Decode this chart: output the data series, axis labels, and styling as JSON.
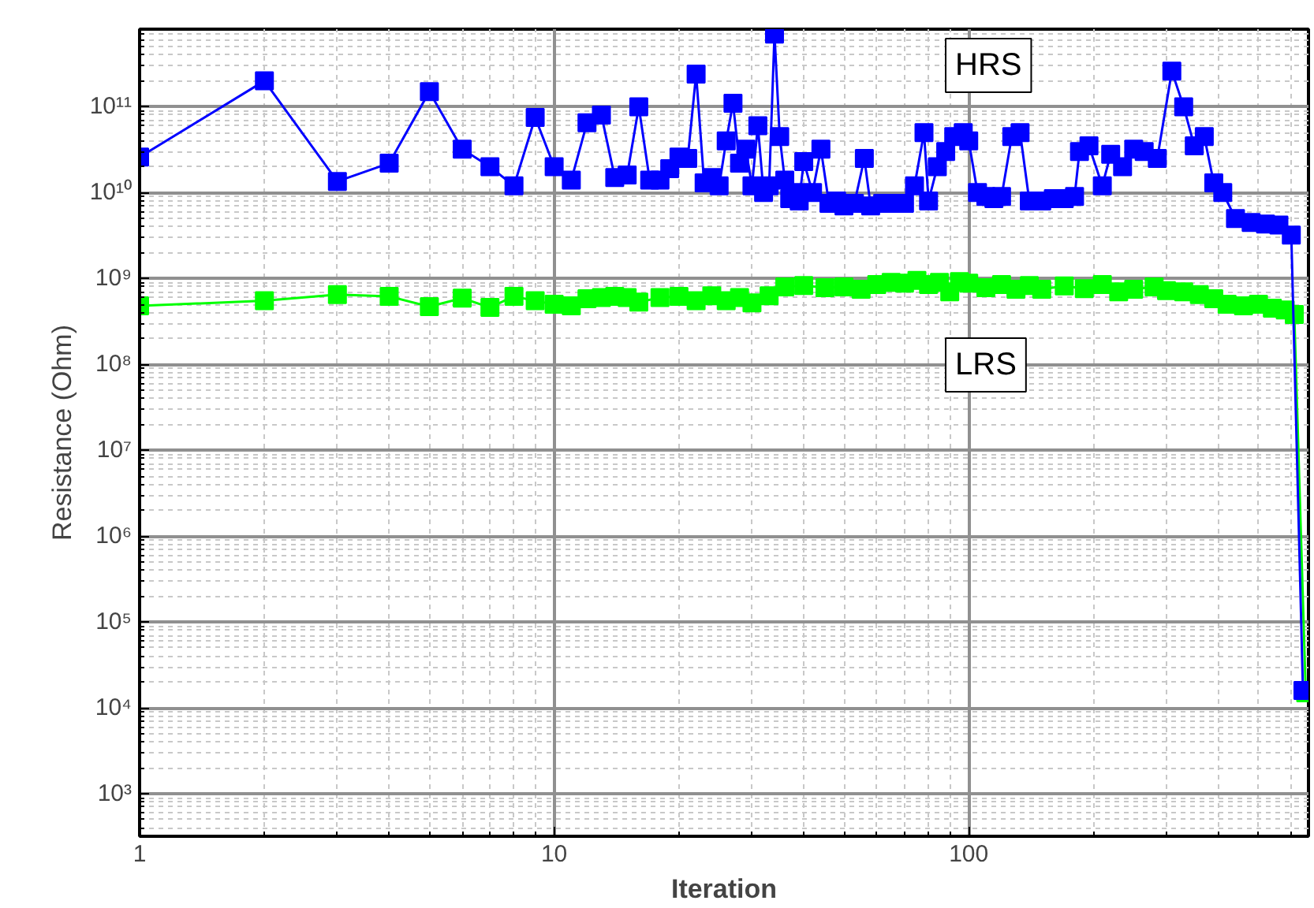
{
  "chart_data": {
    "type": "line",
    "xlabel": "Iteration",
    "ylabel": "Resistance (Ohm)",
    "log": "xy",
    "grid": true,
    "marker": "square",
    "line_style": "solid",
    "legend": false,
    "xlim": [
      1,
      660
    ],
    "xticks": [
      1,
      10,
      100
    ],
    "ylim": [
      320,
      800000000000.0
    ],
    "yticks": [
      {
        "value": 1000,
        "label": "10³"
      },
      {
        "value": 10000,
        "label": "10⁴"
      },
      {
        "value": 100000,
        "label": "10⁵"
      },
      {
        "value": 1000000,
        "label": "10⁶"
      },
      {
        "value": 10000000,
        "label": "10⁷"
      },
      {
        "value": 100000000,
        "label": "10⁸"
      },
      {
        "value": 1000000000,
        "label": "10⁹"
      },
      {
        "value": 10000000000,
        "label": "10¹⁰"
      },
      {
        "value": 100000000000,
        "label": "10¹¹"
      }
    ],
    "series": [
      {
        "name": "HRS",
        "color": "#0000ff",
        "x": [
          1,
          2,
          3,
          4,
          5,
          6,
          7,
          8,
          9,
          10,
          11,
          12,
          13,
          14,
          15,
          16,
          17,
          18,
          19,
          20,
          21,
          22,
          23,
          24,
          25,
          26,
          27,
          28,
          29,
          30,
          31,
          32,
          33,
          34,
          35,
          36,
          37,
          38,
          39,
          40,
          42,
          44,
          46,
          48,
          50,
          53,
          56,
          58,
          62,
          66,
          70,
          74,
          78,
          80,
          84,
          88,
          92,
          97,
          100,
          105,
          110,
          115,
          120,
          127,
          133,
          140,
          150,
          160,
          170,
          180,
          185,
          195,
          210,
          220,
          235,
          250,
          265,
          285,
          309,
          330,
          350,
          370,
          390,
          410,
          440,
          480,
          520,
          560,
          600,
          640
        ],
        "values": [
          26000000000.0,
          200000000000.0,
          13500000000.0,
          22000000000.0,
          150000000000.0,
          32000000000.0,
          20000000000.0,
          12000000000.0,
          75000000000.0,
          20000000000.0,
          14000000000.0,
          65000000000.0,
          80000000000.0,
          15000000000.0,
          16000000000.0,
          100000000000.0,
          14000000000.0,
          14000000000.0,
          19000000000.0,
          26000000000.0,
          25000000000.0,
          240000000000.0,
          13000000000.0,
          15000000000.0,
          12000000000.0,
          40000000000.0,
          110000000000.0,
          22000000000.0,
          32000000000.0,
          12000000000.0,
          60000000000.0,
          10000000000.0,
          12000000000.0,
          700000000000.0,
          45000000000.0,
          14000000000.0,
          8500000000.0,
          10000000000.0,
          8000000000.0,
          23000000000.0,
          10000000000.0,
          32000000000.0,
          7500000000.0,
          8000000000.0,
          7000000000.0,
          7500000000.0,
          25000000000.0,
          7000000000.0,
          7500000000.0,
          7500000000.0,
          7500000000.0,
          12000000000.0,
          50000000000.0,
          8000000000.0,
          20000000000.0,
          30000000000.0,
          45000000000.0,
          50000000000.0,
          40000000000.0,
          10000000000.0,
          9000000000.0,
          8500000000.0,
          9000000000.0,
          45000000000.0,
          50000000000.0,
          8000000000.0,
          8000000000.0,
          8500000000.0,
          8500000000.0,
          9000000000.0,
          30000000000.0,
          35000000000.0,
          12000000000.0,
          28000000000.0,
          20000000000.0,
          32000000000.0,
          30000000000.0,
          25000000000.0,
          260000000000.0,
          100000000000.0,
          35000000000.0,
          45000000000.0,
          13000000000.0,
          10000000000.0,
          5000000000.0,
          4500000000.0,
          4300000000.0,
          4200000000.0,
          3200000000.0,
          16000.0
        ]
      },
      {
        "name": "LRS",
        "color": "#00ff00",
        "x": [
          1,
          2,
          3,
          4,
          5,
          6,
          7,
          8,
          9,
          10,
          11,
          12,
          13,
          14,
          15,
          16,
          18,
          20,
          22,
          24,
          26,
          28,
          30,
          33,
          36,
          40,
          45,
          50,
          55,
          60,
          65,
          70,
          75,
          80,
          85,
          90,
          95,
          100,
          110,
          120,
          130,
          140,
          150,
          170,
          190,
          210,
          230,
          250,
          280,
          300,
          330,
          360,
          390,
          420,
          460,
          500,
          540,
          580,
          610,
          650
        ],
        "values": [
          480000000.0,
          550000000.0,
          650000000.0,
          620000000.0,
          470000000.0,
          590000000.0,
          460000000.0,
          620000000.0,
          550000000.0,
          500000000.0,
          480000000.0,
          580000000.0,
          600000000.0,
          620000000.0,
          600000000.0,
          530000000.0,
          600000000.0,
          620000000.0,
          550000000.0,
          630000000.0,
          550000000.0,
          600000000.0,
          520000000.0,
          630000000.0,
          800000000.0,
          830000000.0,
          780000000.0,
          800000000.0,
          750000000.0,
          850000000.0,
          900000000.0,
          880000000.0,
          950000000.0,
          850000000.0,
          900000000.0,
          700000000.0,
          920000000.0,
          880000000.0,
          780000000.0,
          850000000.0,
          750000000.0,
          830000000.0,
          750000000.0,
          820000000.0,
          760000000.0,
          850000000.0,
          700000000.0,
          750000000.0,
          800000000.0,
          720000000.0,
          700000000.0,
          650000000.0,
          580000000.0,
          500000000.0,
          480000000.0,
          500000000.0,
          450000000.0,
          430000000.0,
          380000000.0,
          15000.0
        ]
      }
    ]
  }
}
